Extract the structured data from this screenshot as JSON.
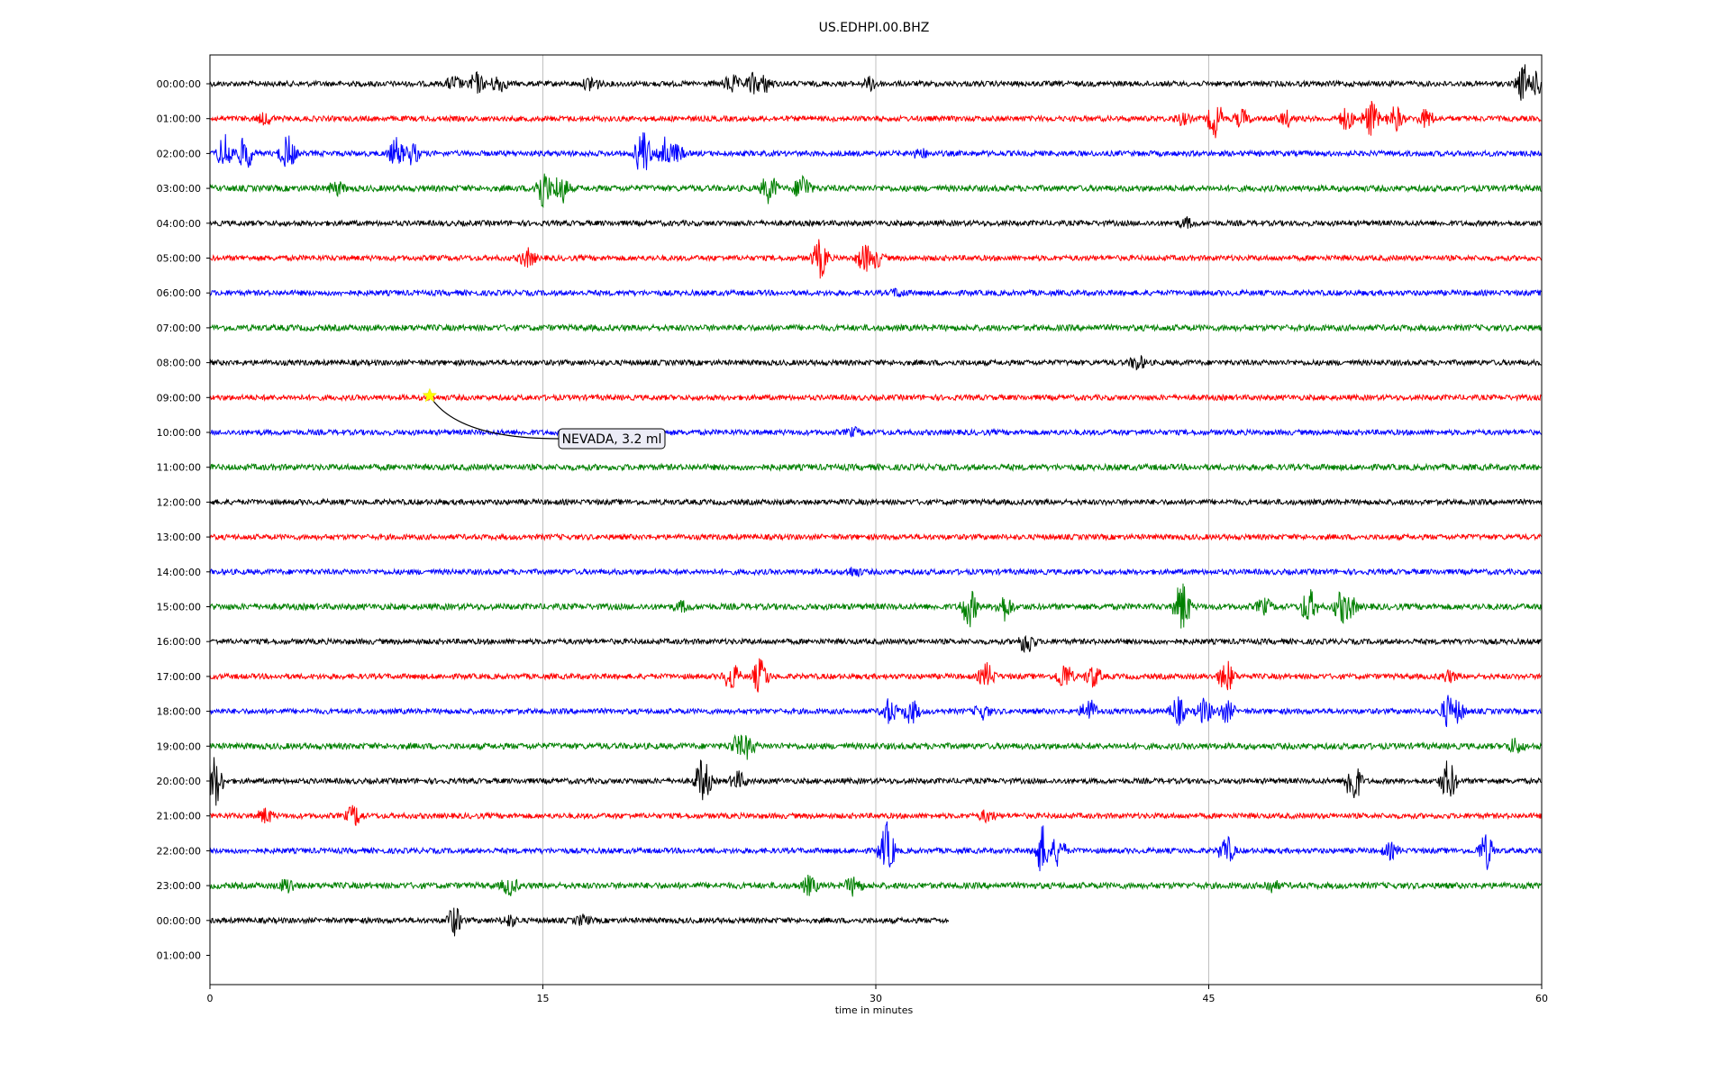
{
  "chart_data": {
    "type": "line",
    "title": "US.EDHPI.00.BHZ",
    "xlabel": "time in minutes",
    "ylabel": "",
    "xlim": [
      0,
      60
    ],
    "x_ticks": [
      "0",
      "15",
      "30",
      "45",
      "60"
    ],
    "x_tick_values": [
      0,
      15,
      30,
      45,
      60
    ],
    "grid": {
      "vertical_lines_at": [
        15,
        30,
        45
      ]
    },
    "row_colors": [
      "#000000",
      "#ff0000",
      "#0000ff",
      "#008000"
    ],
    "rows": [
      {
        "label": "00:00:00",
        "end_minute": 60,
        "bursts": [
          [
            11,
            8
          ],
          [
            12,
            12
          ],
          [
            13,
            10
          ],
          [
            17.2,
            9
          ],
          [
            23.5,
            10
          ],
          [
            24.5,
            12
          ],
          [
            25,
            9
          ],
          [
            29.8,
            7
          ],
          [
            59.2,
            22
          ],
          [
            59.8,
            13
          ]
        ]
      },
      {
        "label": "01:00:00",
        "end_minute": 60,
        "bursts": [
          [
            2.5,
            6
          ],
          [
            43.8,
            6
          ],
          [
            45.3,
            20
          ],
          [
            46.5,
            10
          ],
          [
            48.5,
            8
          ],
          [
            51.2,
            12
          ],
          [
            52.3,
            20
          ],
          [
            53.4,
            14
          ],
          [
            54.8,
            10
          ]
        ]
      },
      {
        "label": "02:00:00",
        "end_minute": 60,
        "bursts": [
          [
            0.7,
            22
          ],
          [
            1.6,
            20
          ],
          [
            3.5,
            20
          ],
          [
            8.4,
            16
          ],
          [
            9.1,
            12
          ],
          [
            19.5,
            28
          ],
          [
            20.5,
            18
          ],
          [
            21,
            10
          ],
          [
            32,
            5
          ]
        ]
      },
      {
        "label": "03:00:00",
        "end_minute": 60,
        "bursts": [
          [
            5.7,
            7
          ],
          [
            15,
            24
          ],
          [
            15.8,
            18
          ],
          [
            25.2,
            16
          ],
          [
            26.7,
            16
          ]
        ]
      },
      {
        "label": "04:00:00",
        "end_minute": 60,
        "bursts": [
          [
            44,
            5
          ]
        ]
      },
      {
        "label": "05:00:00",
        "end_minute": 60,
        "bursts": [
          [
            14.3,
            10
          ],
          [
            27.5,
            22
          ],
          [
            29.5,
            16
          ],
          [
            30,
            10
          ]
        ]
      },
      {
        "label": "06:00:00",
        "end_minute": 60,
        "bursts": [
          [
            31,
            4
          ]
        ]
      },
      {
        "label": "07:00:00",
        "end_minute": 60,
        "bursts": []
      },
      {
        "label": "08:00:00",
        "end_minute": 60,
        "bursts": [
          [
            41.8,
            8
          ]
        ]
      },
      {
        "label": "09:00:00",
        "end_minute": 60,
        "bursts": []
      },
      {
        "label": "10:00:00",
        "end_minute": 60,
        "bursts": [
          [
            29,
            4
          ]
        ]
      },
      {
        "label": "11:00:00",
        "end_minute": 60,
        "bursts": []
      },
      {
        "label": "12:00:00",
        "end_minute": 60,
        "bursts": []
      },
      {
        "label": "13:00:00",
        "end_minute": 60,
        "bursts": []
      },
      {
        "label": "14:00:00",
        "end_minute": 60,
        "bursts": [
          [
            29,
            5
          ]
        ]
      },
      {
        "label": "15:00:00",
        "end_minute": 60,
        "bursts": [
          [
            21.3,
            5
          ],
          [
            34.2,
            22
          ],
          [
            35.8,
            14
          ],
          [
            43.8,
            30
          ],
          [
            47.5,
            8
          ],
          [
            49.5,
            20
          ],
          [
            51,
            18
          ],
          [
            51.3,
            14
          ]
        ]
      },
      {
        "label": "16:00:00",
        "end_minute": 60,
        "bursts": [
          [
            36.8,
            14
          ]
        ]
      },
      {
        "label": "17:00:00",
        "end_minute": 60,
        "bursts": [
          [
            23.5,
            16
          ],
          [
            24.8,
            20
          ],
          [
            35,
            14
          ],
          [
            38.5,
            16
          ],
          [
            39.8,
            12
          ],
          [
            45.8,
            18
          ],
          [
            55.8,
            6
          ]
        ]
      },
      {
        "label": "18:00:00",
        "end_minute": 60,
        "bursts": [
          [
            30.6,
            14
          ],
          [
            31.6,
            14
          ],
          [
            34.8,
            8
          ],
          [
            39.6,
            14
          ],
          [
            43.6,
            16
          ],
          [
            44.8,
            14
          ],
          [
            45.8,
            12
          ],
          [
            55.8,
            18
          ],
          [
            56.2,
            12
          ]
        ]
      },
      {
        "label": "19:00:00",
        "end_minute": 60,
        "bursts": [
          [
            23.8,
            12
          ],
          [
            24.2,
            12
          ],
          [
            58.8,
            8
          ]
        ]
      },
      {
        "label": "20:00:00",
        "end_minute": 60,
        "bursts": [
          [
            0.2,
            30
          ],
          [
            22.2,
            26
          ],
          [
            23.8,
            10
          ],
          [
            51.5,
            28
          ],
          [
            55.8,
            24
          ]
        ]
      },
      {
        "label": "21:00:00",
        "end_minute": 60,
        "bursts": [
          [
            2.5,
            8
          ],
          [
            6.5,
            12
          ],
          [
            35,
            6
          ]
        ]
      },
      {
        "label": "22:00:00",
        "end_minute": 60,
        "bursts": [
          [
            30.5,
            30
          ],
          [
            37.5,
            28
          ],
          [
            38.2,
            16
          ],
          [
            45.8,
            16
          ],
          [
            53.2,
            8
          ],
          [
            57.5,
            20
          ]
        ]
      },
      {
        "label": "23:00:00",
        "end_minute": 60,
        "bursts": [
          [
            3.5,
            8
          ],
          [
            13.5,
            10
          ],
          [
            27,
            10
          ],
          [
            29,
            10
          ],
          [
            47.8,
            6
          ]
        ]
      },
      {
        "label": "00:00:00",
        "end_minute": 33.3,
        "bursts": [
          [
            11,
            16
          ],
          [
            13.5,
            6
          ],
          [
            16.8,
            5
          ]
        ]
      },
      {
        "label": "01:00:00",
        "end_minute": 0,
        "bursts": []
      }
    ],
    "annotations": [
      {
        "text": "NEVADA, 3.2 ml",
        "row": 9,
        "minute": 9.9,
        "marker": "star",
        "marker_color": "#ffff00"
      }
    ]
  }
}
